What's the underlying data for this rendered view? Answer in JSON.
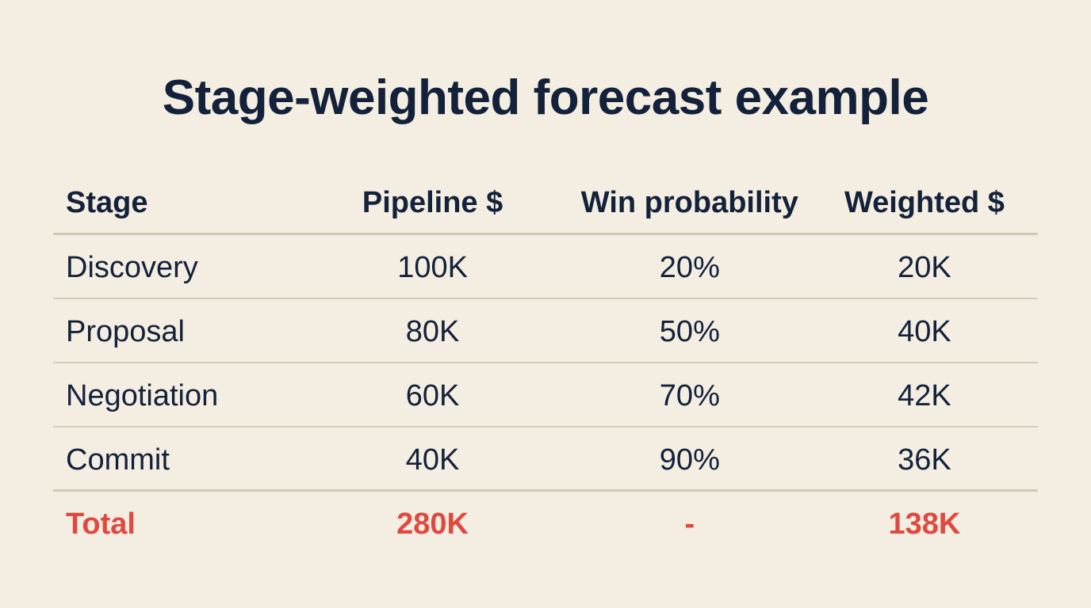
{
  "title": "Stage-weighted forecast example",
  "table": {
    "headers": [
      "Stage",
      "Pipeline $",
      "Win probability",
      "Weighted $"
    ],
    "rows": [
      [
        "Discovery",
        "100K",
        "20%",
        "20K"
      ],
      [
        "Proposal",
        "80K",
        "50%",
        "40K"
      ],
      [
        "Negotiation",
        "60K",
        "70%",
        "42K"
      ],
      [
        "Commit",
        "40K",
        "90%",
        "36K"
      ]
    ],
    "total": [
      "Total",
      "280K",
      "-",
      "138K"
    ]
  },
  "colors": {
    "background": "#f3ede2",
    "text": "#13223a",
    "accent_total": "#e0493f",
    "divider": "#d6cdb9"
  }
}
